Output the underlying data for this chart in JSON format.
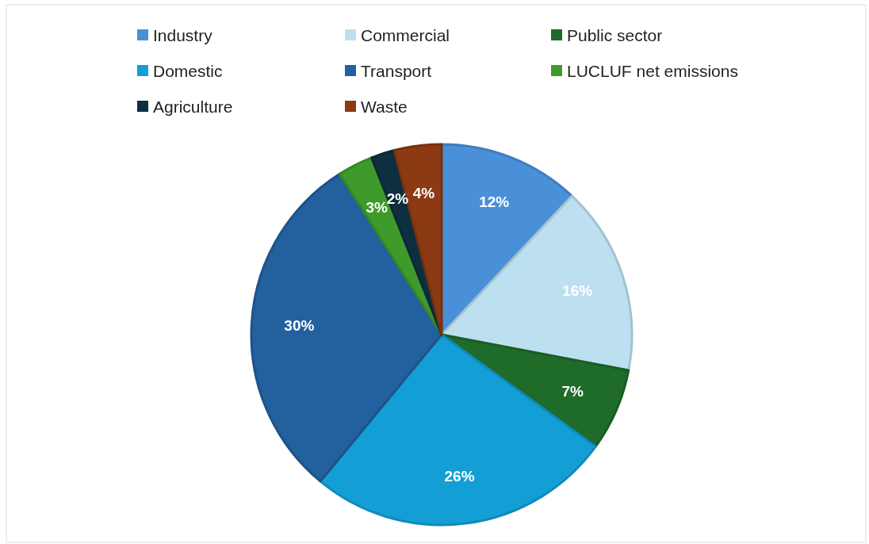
{
  "chart_data": {
    "type": "pie",
    "categories": [
      "Industry",
      "Commercial",
      "Public sector",
      "Domestic",
      "Transport",
      "LUCLUF net emissions",
      "Agriculture",
      "Waste"
    ],
    "values": [
      12,
      16,
      7,
      26,
      30,
      3,
      2,
      4
    ],
    "colors": [
      "#4a90d9",
      "#bde0f0",
      "#1e6b2a",
      "#139fd6",
      "#22609e",
      "#3f9a2c",
      "#0d2f3f",
      "#8b3a14"
    ],
    "value_labels": [
      "12%",
      "16%",
      "7%",
      "26%",
      "30%",
      "3%",
      "2%",
      "4%"
    ],
    "legend": "top"
  }
}
